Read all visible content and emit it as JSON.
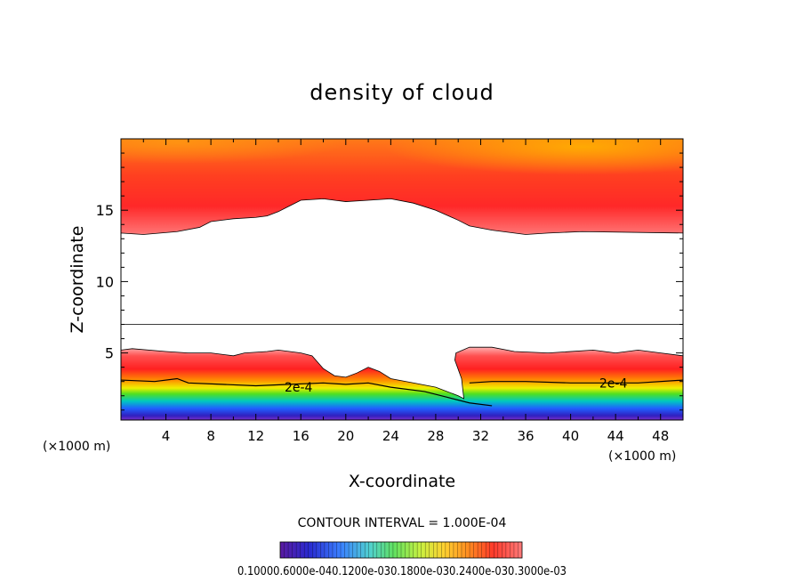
{
  "chart_data": {
    "type": "contour",
    "title": "density of cloud",
    "xlabel": "X-coordinate",
    "ylabel": "Z-coordinate",
    "x_unit_left": "(×1000 m)",
    "x_unit_right": "(×1000 m)",
    "xlim": [
      0,
      50
    ],
    "ylim": [
      0.3,
      20
    ],
    "x_ticks": [
      "4",
      "8",
      "12",
      "16",
      "20",
      "24",
      "28",
      "32",
      "36",
      "40",
      "44",
      "48"
    ],
    "x_tick_values": [
      4,
      8,
      12,
      16,
      20,
      24,
      28,
      32,
      36,
      40,
      44,
      48
    ],
    "y_ticks": [
      "5",
      "10",
      "15"
    ],
    "y_tick_values": [
      5,
      10,
      15
    ],
    "contour_interval_text": "CONTOUR INTERVAL = 1.000E-04",
    "contour_labels": [
      {
        "text": "2e-4",
        "x": 15.8,
        "z": 2.6
      },
      {
        "text": "2e-4",
        "x": 43.8,
        "z": 2.9
      }
    ],
    "colorbar_labels": [
      "0.1000",
      "0.6000e-04",
      "0.1200e-03",
      "0.1800e-03",
      "0.2400e-03",
      "0.3000e-03"
    ],
    "colorbar_text": "0.10000.6000e-040.1200e-030.1800e-030.2400e-030.3000e-03",
    "upper_cloud_base": [
      [
        0,
        13.4
      ],
      [
        2,
        13.3
      ],
      [
        5,
        13.5
      ],
      [
        7,
        13.8
      ],
      [
        8,
        14.2
      ],
      [
        10,
        14.4
      ],
      [
        12,
        14.5
      ],
      [
        13,
        14.6
      ],
      [
        14,
        14.9
      ],
      [
        15,
        15.3
      ],
      [
        16,
        15.7
      ],
      [
        18,
        15.8
      ],
      [
        20,
        15.6
      ],
      [
        22,
        15.7
      ],
      [
        24,
        15.8
      ],
      [
        26,
        15.5
      ],
      [
        28,
        15.0
      ],
      [
        30,
        14.3
      ],
      [
        31,
        13.9
      ],
      [
        33,
        13.6
      ],
      [
        35,
        13.4
      ],
      [
        36,
        13.3
      ],
      [
        38,
        13.4
      ],
      [
        41,
        13.5
      ],
      [
        50,
        13.4
      ]
    ],
    "lower_cloud_top": [
      [
        0,
        5.2
      ],
      [
        1,
        5.3
      ],
      [
        4,
        5.1
      ],
      [
        6,
        5.0
      ],
      [
        8,
        5.0
      ],
      [
        10,
        4.8
      ],
      [
        11,
        5.0
      ],
      [
        13,
        5.1
      ],
      [
        14,
        5.2
      ],
      [
        16,
        5.0
      ],
      [
        17,
        4.8
      ],
      [
        18,
        3.9
      ],
      [
        19,
        3.4
      ],
      [
        20,
        3.3
      ],
      [
        21,
        3.6
      ],
      [
        22,
        4.0
      ],
      [
        23,
        3.7
      ],
      [
        24,
        3.2
      ],
      [
        26,
        2.9
      ],
      [
        28,
        2.6
      ],
      [
        30,
        2.0
      ],
      [
        30.5,
        1.8
      ],
      [
        30.3,
        3.2
      ],
      [
        29.7,
        4.5
      ],
      [
        29.8,
        5.0
      ],
      [
        31,
        5.4
      ],
      [
        33,
        5.4
      ],
      [
        35,
        5.1
      ],
      [
        38,
        5.0
      ],
      [
        42,
        5.2
      ],
      [
        44,
        5.0
      ],
      [
        46,
        5.2
      ],
      [
        48,
        5.0
      ],
      [
        50,
        4.8
      ]
    ]
  }
}
